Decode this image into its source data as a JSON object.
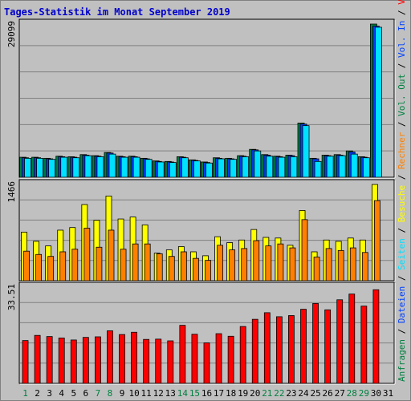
{
  "title": "Tages-Statistik im Monat September 2019",
  "colors": {
    "background": "#c0c0c0",
    "hits": "#008040",
    "files": "#0040ff",
    "pages": "#00e0ff",
    "visits": "#ffff00",
    "sites": "#ff8000",
    "kbytes": "#ff0000",
    "weekend_label": "#008040",
    "weekday_label": "#000000"
  },
  "legend": {
    "top": [
      {
        "text": "Anfragen",
        "color": "#008040"
      },
      {
        "text": " / ",
        "color": "#000000"
      },
      {
        "text": "Dateien",
        "color": "#0040ff"
      },
      {
        "text": " / ",
        "color": "#000000"
      },
      {
        "text": "Seiten",
        "color": "#00e0ff"
      },
      {
        "text": " / ",
        "color": "#000000"
      },
      {
        "text": "Besuche",
        "color": "#ffff00"
      },
      {
        "text": " / ",
        "color": "#000000"
      },
      {
        "text": "Rechner",
        "color": "#ff8000"
      },
      {
        "text": " / ",
        "color": "#000000"
      },
      {
        "text": "Vol. Out",
        "color": "#008040"
      },
      {
        "text": " / ",
        "color": "#000000"
      },
      {
        "text": "Vol. In",
        "color": "#0040ff"
      },
      {
        "text": " / ",
        "color": "#000000"
      },
      {
        "text": "Volumen",
        "color": "#ff0000"
      }
    ]
  },
  "chart_data": [
    {
      "type": "bar",
      "panel": "hits-files-pages",
      "ymax_label": "29099",
      "ylim": [
        0,
        29099
      ],
      "categories": [
        "1",
        "2",
        "3",
        "4",
        "5",
        "6",
        "7",
        "8",
        "9",
        "10",
        "11",
        "12",
        "13",
        "14",
        "15",
        "16",
        "17",
        "18",
        "19",
        "20",
        "21",
        "22",
        "23",
        "24",
        "25",
        "26",
        "27",
        "28",
        "29",
        "30",
        "31"
      ],
      "series": [
        {
          "name": "Anfragen",
          "values": [
            3800,
            3800,
            3600,
            4000,
            3900,
            4300,
            4100,
            4700,
            4000,
            4000,
            3600,
            3100,
            3000,
            3900,
            3300,
            2900,
            3700,
            3600,
            4100,
            5300,
            4300,
            4000,
            4200,
            10300,
            3600,
            4200,
            4300,
            5000,
            3900,
            29099,
            null
          ]
        },
        {
          "name": "Dateien",
          "values": [
            3700,
            3700,
            3500,
            3900,
            3800,
            4200,
            4000,
            4600,
            3900,
            3900,
            3500,
            3000,
            2900,
            3800,
            3200,
            2800,
            3600,
            3500,
            4000,
            5200,
            4200,
            3900,
            4100,
            10100,
            3500,
            4100,
            4200,
            4800,
            3800,
            28700,
            null
          ]
        },
        {
          "name": "Seiten",
          "values": [
            3600,
            3600,
            3400,
            3800,
            3700,
            4100,
            3900,
            4400,
            3800,
            3800,
            3400,
            2900,
            2800,
            3700,
            3100,
            2700,
            3500,
            3400,
            3900,
            5000,
            4000,
            3800,
            3900,
            9800,
            3000,
            4000,
            4100,
            4400,
            3700,
            28500,
            null
          ]
        }
      ]
    },
    {
      "type": "bar",
      "panel": "visits-sites",
      "ymax_label": "1466",
      "ylim": [
        0,
        1466
      ],
      "categories": [
        "1",
        "2",
        "3",
        "4",
        "5",
        "6",
        "7",
        "8",
        "9",
        "10",
        "11",
        "12",
        "13",
        "14",
        "15",
        "16",
        "17",
        "18",
        "19",
        "20",
        "21",
        "22",
        "23",
        "24",
        "25",
        "26",
        "27",
        "28",
        "29",
        "30",
        "31"
      ],
      "series": [
        {
          "name": "Besuche",
          "values": [
            740,
            600,
            530,
            770,
            810,
            1160,
            920,
            1290,
            940,
            970,
            850,
            420,
            470,
            520,
            440,
            380,
            670,
            580,
            620,
            780,
            660,
            650,
            540,
            1070,
            440,
            620,
            600,
            650,
            620,
            1466,
            null
          ]
        },
        {
          "name": "Rechner",
          "values": [
            450,
            400,
            370,
            440,
            480,
            800,
            510,
            770,
            480,
            560,
            560,
            410,
            370,
            440,
            340,
            310,
            540,
            470,
            490,
            610,
            530,
            560,
            500,
            930,
            360,
            490,
            460,
            500,
            430,
            1220,
            null
          ]
        }
      ]
    },
    {
      "type": "bar",
      "panel": "kbytes",
      "ymax_label": "33.51",
      "ylim": [
        0,
        33.51
      ],
      "categories": [
        "1",
        "2",
        "3",
        "4",
        "5",
        "6",
        "7",
        "8",
        "9",
        "10",
        "11",
        "12",
        "13",
        "14",
        "15",
        "16",
        "17",
        "18",
        "19",
        "20",
        "21",
        "22",
        "23",
        "24",
        "25",
        "26",
        "27",
        "28",
        "29",
        "30",
        "31"
      ],
      "series": [
        {
          "name": "Volumen",
          "values": [
            14.9,
            16.7,
            16.3,
            15.8,
            15.1,
            16.0,
            16.2,
            18.3,
            17.0,
            17.8,
            15.3,
            15.4,
            14.8,
            20.2,
            17.1,
            14.1,
            17.3,
            16.4,
            19.8,
            22.3,
            24.6,
            23.2,
            23.6,
            25.8,
            27.8,
            25.6,
            29.1,
            31.1,
            26.9,
            32.6,
            null
          ]
        }
      ]
    }
  ],
  "x_axis": {
    "labels": [
      "1",
      "2",
      "3",
      "4",
      "5",
      "6",
      "7",
      "8",
      "9",
      "10",
      "11",
      "12",
      "13",
      "14",
      "15",
      "16",
      "17",
      "18",
      "19",
      "20",
      "21",
      "22",
      "23",
      "24",
      "25",
      "26",
      "27",
      "28",
      "29",
      "30",
      "31"
    ],
    "weekend": [
      1,
      7,
      8,
      14,
      15,
      21,
      22,
      28,
      29
    ]
  }
}
